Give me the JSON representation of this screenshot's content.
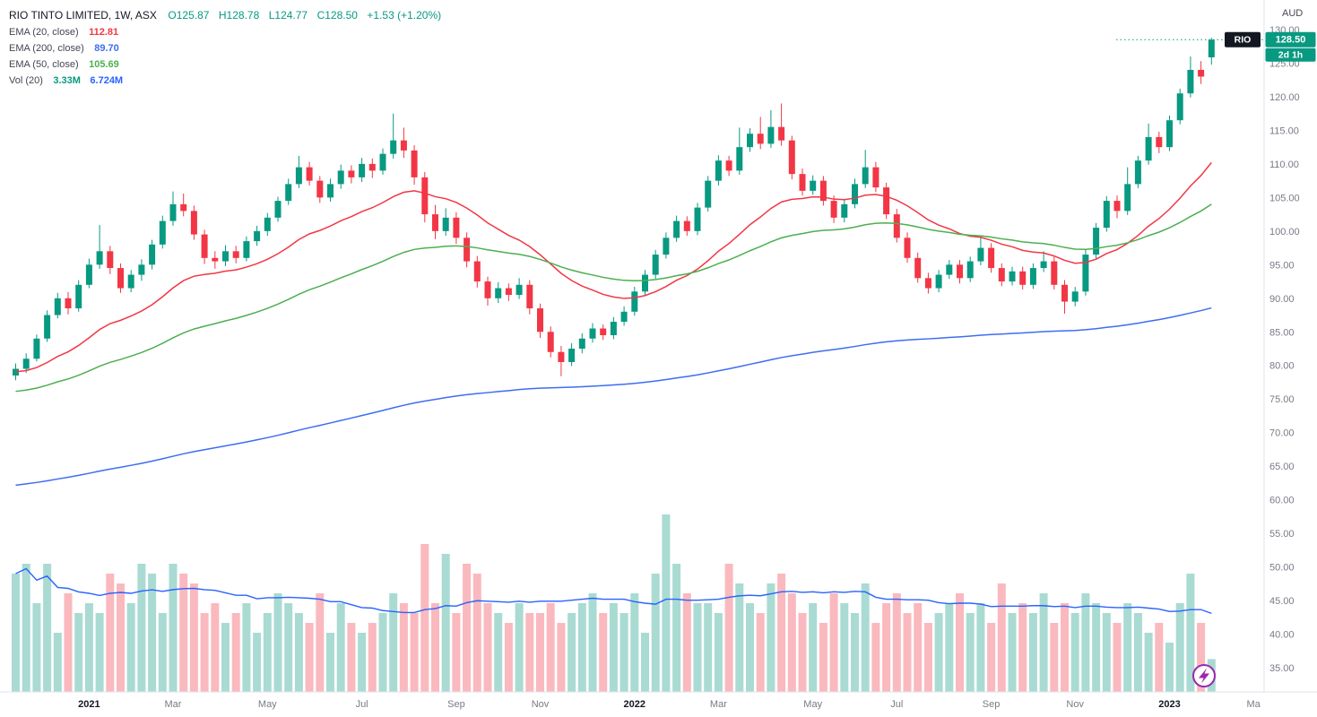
{
  "header": {
    "symbol_title": "RIO TINTO LIMITED, 1W, ASX",
    "ohlc": {
      "o": "O125.87",
      "h": "H128.78",
      "l": "L124.77",
      "c": "C128.50",
      "change": "+1.53 (+1.20%)",
      "color": "#089981"
    },
    "indicators": [
      {
        "label": "EMA (20, close)",
        "value": "112.81",
        "color": "#f23645"
      },
      {
        "label": "EMA (200, close)",
        "value": "89.70",
        "color": "#3d6df2"
      },
      {
        "label": "EMA (50, close)",
        "value": "105.69",
        "color": "#4caf50"
      },
      {
        "label": "Vol (20)",
        "values": [
          {
            "text": "3.33M",
            "color": "#089981"
          },
          {
            "text": "6.724M",
            "color": "#2962ff"
          }
        ]
      }
    ]
  },
  "price_scale": {
    "currency": "AUD",
    "ticks": [
      "130.00",
      "125.00",
      "120.00",
      "115.00",
      "110.00",
      "105.00",
      "100.00",
      "95.00",
      "90.00",
      "85.00",
      "80.00",
      "75.00",
      "70.00",
      "65.00",
      "60.00",
      "55.00",
      "50.00",
      "45.00",
      "40.00",
      "35.00"
    ],
    "symbol_badge": "RIO",
    "last_price_badge": "128.50",
    "countdown_badge": "2d 1h",
    "badge_color": "#089981",
    "symbol_badge_color": "#131722",
    "tick_color": "#787b86"
  },
  "time_scale": {
    "labels": [
      {
        "label": "2021",
        "index": 7,
        "major": true
      },
      {
        "label": "Mar",
        "index": 15,
        "major": false
      },
      {
        "label": "May",
        "index": 24,
        "major": false
      },
      {
        "label": "Jul",
        "index": 33,
        "major": false
      },
      {
        "label": "Sep",
        "index": 42,
        "major": false
      },
      {
        "label": "Nov",
        "index": 50,
        "major": false
      },
      {
        "label": "2022",
        "index": 59,
        "major": true
      },
      {
        "label": "Mar",
        "index": 67,
        "major": false
      },
      {
        "label": "May",
        "index": 76,
        "major": false
      },
      {
        "label": "Jul",
        "index": 84,
        "major": false
      },
      {
        "label": "Sep",
        "index": 93,
        "major": false
      },
      {
        "label": "Nov",
        "index": 101,
        "major": false
      },
      {
        "label": "2023",
        "index": 110,
        "major": true
      },
      {
        "label": "Ma",
        "index": 118,
        "major": false
      }
    ],
    "major_color": "#131722",
    "minor_color": "#787b86"
  },
  "chart_data": {
    "type": "candlestick",
    "symbol": "RIO",
    "interval": "1W",
    "title": "RIO TINTO LIMITED, 1W, ASX",
    "price_axis_range": [
      35,
      130
    ],
    "last_price": 128.5,
    "colors": {
      "up": "#089981",
      "down": "#f23645",
      "vol_up": "rgba(8,153,129,0.35)",
      "vol_down": "rgba(242,54,69,0.35)",
      "price_line": "#089981",
      "axis_line": "#e0e3eb"
    },
    "overlays": [
      {
        "name": "EMA 20",
        "period": 20,
        "seed": 79,
        "color": "#f23645"
      },
      {
        "name": "EMA 50",
        "period": 50,
        "seed": 76,
        "color": "#4caf50"
      },
      {
        "name": "EMA 200",
        "period": 200,
        "seed": 62,
        "color": "#3d6df2"
      }
    ],
    "volume_ma": {
      "period": 20,
      "color": "#2962ff"
    },
    "candles": [
      [
        78.5,
        80.3,
        77.8,
        79.5,
        12
      ],
      [
        79.5,
        81.8,
        78.9,
        81,
        13
      ],
      [
        81,
        84.6,
        80.6,
        84,
        9
      ],
      [
        84,
        88.2,
        83.5,
        87.5,
        13
      ],
      [
        87.5,
        90.8,
        87,
        90,
        6
      ],
      [
        90,
        90.9,
        87.6,
        88.5,
        10
      ],
      [
        88.5,
        92.7,
        88,
        92,
        8
      ],
      [
        92,
        95.9,
        91.5,
        95,
        9
      ],
      [
        95,
        100.9,
        94.4,
        97,
        8
      ],
      [
        97,
        97.8,
        93.6,
        94.5,
        12
      ],
      [
        94.5,
        95.2,
        90.8,
        91.5,
        11
      ],
      [
        91.5,
        94.2,
        90.9,
        93.5,
        9
      ],
      [
        93.5,
        95.8,
        92.6,
        95,
        13
      ],
      [
        95,
        98.7,
        94.3,
        98,
        12
      ],
      [
        98,
        102.3,
        97.4,
        101.5,
        8
      ],
      [
        101.5,
        105.9,
        100.8,
        104,
        13
      ],
      [
        104,
        105.6,
        102.2,
        103,
        12
      ],
      [
        103,
        103.8,
        98.7,
        99.5,
        11
      ],
      [
        99.5,
        100.2,
        95.1,
        96,
        8
      ],
      [
        96,
        97,
        94.4,
        95.5,
        9
      ],
      [
        95.5,
        97.9,
        94.8,
        97,
        7
      ],
      [
        97,
        97.8,
        95.2,
        96,
        8
      ],
      [
        96,
        99.2,
        95.5,
        98.5,
        9
      ],
      [
        98.5,
        100.8,
        97.8,
        100,
        6
      ],
      [
        100,
        102.7,
        99.3,
        102,
        8
      ],
      [
        102,
        105.1,
        101.4,
        104.5,
        10
      ],
      [
        104.5,
        107.8,
        103.9,
        107,
        9
      ],
      [
        107,
        111.2,
        106.4,
        109.5,
        8
      ],
      [
        109.5,
        110.3,
        106.8,
        107.5,
        7
      ],
      [
        107.5,
        108.2,
        104.2,
        105,
        10
      ],
      [
        105,
        107.8,
        104.4,
        107,
        6
      ],
      [
        107,
        109.9,
        106.3,
        109,
        9
      ],
      [
        109,
        109.8,
        107.1,
        108,
        7
      ],
      [
        108,
        110.9,
        107.3,
        110,
        6
      ],
      [
        110,
        110.8,
        107.9,
        109,
        7
      ],
      [
        109,
        112.3,
        108.4,
        111.5,
        8
      ],
      [
        111.5,
        117.5,
        110.8,
        113.5,
        10
      ],
      [
        113.5,
        115.4,
        110.9,
        112,
        9
      ],
      [
        112,
        112.8,
        106.9,
        108,
        8
      ],
      [
        108,
        108.8,
        101.3,
        102.5,
        15
      ],
      [
        102.5,
        103.9,
        98.8,
        100,
        9
      ],
      [
        100,
        103.4,
        99.3,
        102,
        14
      ],
      [
        102,
        102.8,
        98.1,
        99,
        8
      ],
      [
        99,
        99.8,
        94.6,
        95.5,
        13
      ],
      [
        95.5,
        96.3,
        91.6,
        92.5,
        12
      ],
      [
        92.5,
        93.2,
        88.9,
        90,
        9
      ],
      [
        90,
        92.4,
        89.3,
        91.5,
        8
      ],
      [
        91.5,
        92.2,
        89.6,
        90.5,
        7
      ],
      [
        90.5,
        93,
        89.9,
        92,
        9
      ],
      [
        92,
        92.7,
        87.6,
        88.5,
        8
      ],
      [
        88.5,
        89.2,
        84.1,
        85,
        8
      ],
      [
        85,
        85.8,
        81.2,
        82,
        9
      ],
      [
        82,
        82.9,
        78.4,
        80.5,
        7
      ],
      [
        80.5,
        83.3,
        79.9,
        82.5,
        8
      ],
      [
        82.5,
        84.8,
        81.8,
        84,
        9
      ],
      [
        84,
        86.3,
        83.4,
        85.5,
        10
      ],
      [
        85.5,
        86.1,
        83.8,
        84.5,
        8
      ],
      [
        84.5,
        87.2,
        83.9,
        86.5,
        9
      ],
      [
        86.5,
        88.8,
        85.9,
        88,
        8
      ],
      [
        88,
        91.7,
        87.4,
        91,
        10
      ],
      [
        91,
        94.2,
        90.4,
        93.5,
        6
      ],
      [
        93.5,
        97.2,
        92.9,
        96.5,
        12
      ],
      [
        96.5,
        99.8,
        95.9,
        99,
        18
      ],
      [
        99,
        102.3,
        98.4,
        101.5,
        13
      ],
      [
        101.5,
        102.2,
        99.3,
        100,
        10
      ],
      [
        100,
        104.2,
        99.4,
        103.5,
        9
      ],
      [
        103.5,
        108.2,
        102.9,
        107.5,
        9
      ],
      [
        107.5,
        111.3,
        106.8,
        110.5,
        8
      ],
      [
        110.5,
        111.2,
        108.2,
        109,
        13
      ],
      [
        109,
        115.4,
        108.4,
        112.5,
        11
      ],
      [
        112.5,
        115.3,
        111.8,
        114.5,
        9
      ],
      [
        114.5,
        117,
        112.2,
        113,
        8
      ],
      [
        113,
        118,
        112.4,
        115.5,
        11
      ],
      [
        115.5,
        119,
        112.7,
        113.5,
        12
      ],
      [
        113.5,
        114.2,
        107.7,
        108.5,
        10
      ],
      [
        108.5,
        109.3,
        105.3,
        106,
        8
      ],
      [
        106,
        108.3,
        105.4,
        107.5,
        9
      ],
      [
        107.5,
        108.2,
        103.8,
        104.5,
        7
      ],
      [
        104.5,
        105.3,
        101.2,
        102,
        10
      ],
      [
        102,
        104.7,
        101.3,
        104,
        9
      ],
      [
        104,
        107.8,
        103.4,
        107,
        8
      ],
      [
        107,
        112.1,
        106.4,
        109.5,
        11
      ],
      [
        109.5,
        110.3,
        105.8,
        106.5,
        7
      ],
      [
        106.5,
        107.2,
        101.8,
        102.5,
        9
      ],
      [
        102.5,
        103.3,
        98.3,
        99,
        10
      ],
      [
        99,
        99.8,
        95.3,
        96,
        8
      ],
      [
        96,
        96.8,
        92.3,
        93,
        9
      ],
      [
        93,
        93.8,
        90.7,
        91.5,
        7
      ],
      [
        91.5,
        94.2,
        90.9,
        93.5,
        8
      ],
      [
        93.5,
        95.7,
        92.9,
        95,
        9
      ],
      [
        95,
        95.7,
        92.2,
        93,
        10
      ],
      [
        93,
        96.2,
        92.4,
        95.5,
        8
      ],
      [
        95.5,
        99,
        94.9,
        97.5,
        9
      ],
      [
        97.5,
        98.2,
        93.8,
        94.5,
        7
      ],
      [
        94.5,
        95.2,
        91.8,
        92.5,
        11
      ],
      [
        92.5,
        94.7,
        91.9,
        94,
        8
      ],
      [
        94,
        94.7,
        91.3,
        92,
        9
      ],
      [
        92,
        95.2,
        91.4,
        94.5,
        8
      ],
      [
        94.5,
        97,
        93.9,
        95.5,
        10
      ],
      [
        95.5,
        96.2,
        91.3,
        92,
        7
      ],
      [
        92,
        92.7,
        87.7,
        89.5,
        9
      ],
      [
        89.5,
        91.7,
        88.8,
        91,
        8
      ],
      [
        91,
        97.2,
        90.4,
        96.5,
        10
      ],
      [
        96.5,
        101.2,
        95.9,
        100.5,
        9
      ],
      [
        100.5,
        105.2,
        99.9,
        104.5,
        8
      ],
      [
        104.5,
        105.3,
        101.9,
        103,
        7
      ],
      [
        103,
        109.5,
        102.4,
        107,
        9
      ],
      [
        107,
        111.2,
        106.4,
        110.5,
        8
      ],
      [
        110.5,
        116,
        109.9,
        114,
        6
      ],
      [
        114,
        114.8,
        111.6,
        112.5,
        7
      ],
      [
        112.5,
        117.2,
        111.9,
        116.5,
        5
      ],
      [
        116.5,
        121.2,
        115.9,
        120.5,
        9
      ],
      [
        120.5,
        126,
        119.9,
        124,
        12
      ],
      [
        124,
        125.3,
        121.9,
        123,
        7
      ],
      [
        125.87,
        128.78,
        124.77,
        128.5,
        3.33
      ]
    ]
  },
  "misc": {
    "lightning_color": "#9c27b0"
  }
}
